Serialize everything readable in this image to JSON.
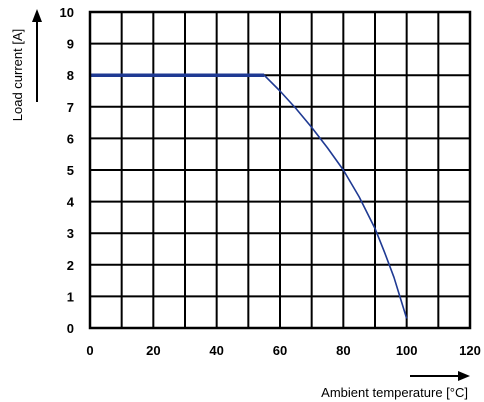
{
  "chart_data": {
    "type": "line",
    "xlabel": "Ambient temperature [°C]",
    "ylabel": "Load current [A]",
    "xlim": [
      0,
      120
    ],
    "ylim": [
      0,
      10
    ],
    "x_ticks": [
      0,
      20,
      40,
      60,
      80,
      100,
      120
    ],
    "y_ticks": [
      0,
      1,
      2,
      3,
      4,
      5,
      6,
      7,
      8,
      9,
      10
    ],
    "x_grid_step": 10,
    "y_grid_step": 1,
    "grid": true,
    "series": [
      {
        "color": "#1f3a93",
        "x": [
          0,
          55,
          60,
          65,
          70,
          75,
          80,
          85,
          90,
          93,
          96,
          98,
          100
        ],
        "y": [
          8,
          8,
          7.5,
          6.95,
          6.35,
          5.7,
          5.0,
          4.15,
          3.15,
          2.4,
          1.6,
          0.95,
          0.3
        ]
      }
    ]
  }
}
